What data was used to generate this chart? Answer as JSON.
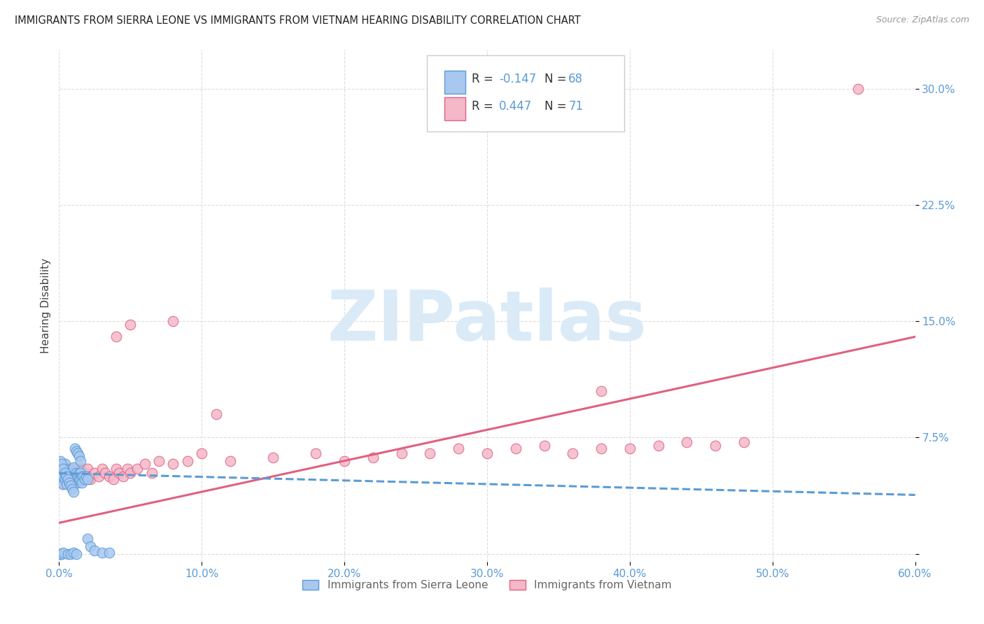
{
  "title": "IMMIGRANTS FROM SIERRA LEONE VS IMMIGRANTS FROM VIETNAM HEARING DISABILITY CORRELATION CHART",
  "source": "Source: ZipAtlas.com",
  "ylabel": "Hearing Disability",
  "xlim": [
    0.0,
    0.6
  ],
  "ylim": [
    -0.005,
    0.325
  ],
  "xtick_vals": [
    0.0,
    0.1,
    0.2,
    0.3,
    0.4,
    0.5,
    0.6
  ],
  "xtick_labels": [
    "0.0%",
    "10.0%",
    "20.0%",
    "30.0%",
    "40.0%",
    "50.0%",
    "60.0%"
  ],
  "ytick_vals": [
    0.0,
    0.075,
    0.15,
    0.225,
    0.3
  ],
  "ytick_labels": [
    "",
    "7.5%",
    "15.0%",
    "22.5%",
    "30.0%"
  ],
  "grid_color": "#dddddd",
  "background_color": "#ffffff",
  "tick_color": "#5b9bd5",
  "sierra_leone_fill": "#a8c8f0",
  "sierra_leone_edge": "#5b9bd5",
  "vietnam_fill": "#f4b8c8",
  "vietnam_edge": "#e06080",
  "sl_line_color": "#5b9bd5",
  "vn_line_color": "#e06080",
  "watermark_text": "ZIPatlas",
  "watermark_color": "#daeaf7",
  "legend_label_color": "#333333",
  "r_n_color": "#5b9bd5",
  "bottom_legend_color": "#666666",
  "sl_scatter_x": [
    0.001,
    0.002,
    0.002,
    0.003,
    0.003,
    0.003,
    0.004,
    0.004,
    0.004,
    0.005,
    0.005,
    0.005,
    0.006,
    0.006,
    0.007,
    0.007,
    0.007,
    0.008,
    0.008,
    0.009,
    0.009,
    0.01,
    0.01,
    0.01,
    0.011,
    0.011,
    0.012,
    0.012,
    0.013,
    0.013,
    0.014,
    0.014,
    0.015,
    0.015,
    0.016,
    0.016,
    0.017,
    0.018,
    0.019,
    0.02,
    0.001,
    0.002,
    0.003,
    0.004,
    0.005,
    0.006,
    0.007,
    0.008,
    0.009,
    0.01,
    0.011,
    0.012,
    0.013,
    0.014,
    0.015,
    0.02,
    0.022,
    0.025,
    0.03,
    0.035,
    0.001,
    0.001,
    0.002,
    0.003,
    0.006,
    0.008,
    0.01,
    0.012
  ],
  "sl_scatter_y": [
    0.05,
    0.048,
    0.052,
    0.045,
    0.05,
    0.055,
    0.048,
    0.052,
    0.058,
    0.05,
    0.045,
    0.055,
    0.048,
    0.053,
    0.05,
    0.046,
    0.054,
    0.048,
    0.052,
    0.05,
    0.045,
    0.048,
    0.052,
    0.056,
    0.05,
    0.046,
    0.048,
    0.052,
    0.05,
    0.046,
    0.048,
    0.052,
    0.048,
    0.052,
    0.05,
    0.046,
    0.05,
    0.048,
    0.05,
    0.048,
    0.06,
    0.058,
    0.055,
    0.052,
    0.05,
    0.048,
    0.046,
    0.044,
    0.042,
    0.04,
    0.068,
    0.066,
    0.065,
    0.063,
    0.06,
    0.01,
    0.005,
    0.002,
    0.001,
    0.001,
    0.0,
    0.0,
    0.0,
    0.001,
    0.0,
    0.0,
    0.001,
    0.0
  ],
  "vn_scatter_x": [
    0.001,
    0.002,
    0.003,
    0.003,
    0.004,
    0.005,
    0.005,
    0.006,
    0.006,
    0.007,
    0.007,
    0.008,
    0.008,
    0.009,
    0.01,
    0.01,
    0.011,
    0.012,
    0.013,
    0.014,
    0.015,
    0.015,
    0.016,
    0.017,
    0.018,
    0.019,
    0.02,
    0.021,
    0.022,
    0.025,
    0.028,
    0.03,
    0.032,
    0.035,
    0.038,
    0.04,
    0.042,
    0.045,
    0.048,
    0.05,
    0.055,
    0.06,
    0.065,
    0.07,
    0.08,
    0.09,
    0.1,
    0.12,
    0.15,
    0.18,
    0.2,
    0.22,
    0.24,
    0.26,
    0.28,
    0.3,
    0.32,
    0.34,
    0.36,
    0.38,
    0.4,
    0.42,
    0.44,
    0.46,
    0.48,
    0.05,
    0.08,
    0.04,
    0.38,
    0.11,
    0.56
  ],
  "vn_scatter_y": [
    0.05,
    0.048,
    0.052,
    0.045,
    0.05,
    0.048,
    0.055,
    0.05,
    0.046,
    0.05,
    0.048,
    0.052,
    0.046,
    0.05,
    0.048,
    0.055,
    0.05,
    0.048,
    0.052,
    0.05,
    0.048,
    0.055,
    0.05,
    0.048,
    0.052,
    0.05,
    0.055,
    0.05,
    0.048,
    0.052,
    0.05,
    0.055,
    0.052,
    0.05,
    0.048,
    0.055,
    0.052,
    0.05,
    0.055,
    0.052,
    0.055,
    0.058,
    0.052,
    0.06,
    0.058,
    0.06,
    0.065,
    0.06,
    0.062,
    0.065,
    0.06,
    0.062,
    0.065,
    0.065,
    0.068,
    0.065,
    0.068,
    0.07,
    0.065,
    0.068,
    0.068,
    0.07,
    0.072,
    0.07,
    0.072,
    0.148,
    0.15,
    0.14,
    0.105,
    0.09,
    0.3
  ],
  "sl_line_x": [
    0.0,
    0.6
  ],
  "sl_line_y": [
    0.052,
    0.038
  ],
  "vn_line_x": [
    0.0,
    0.6
  ],
  "vn_line_y": [
    0.02,
    0.14
  ]
}
